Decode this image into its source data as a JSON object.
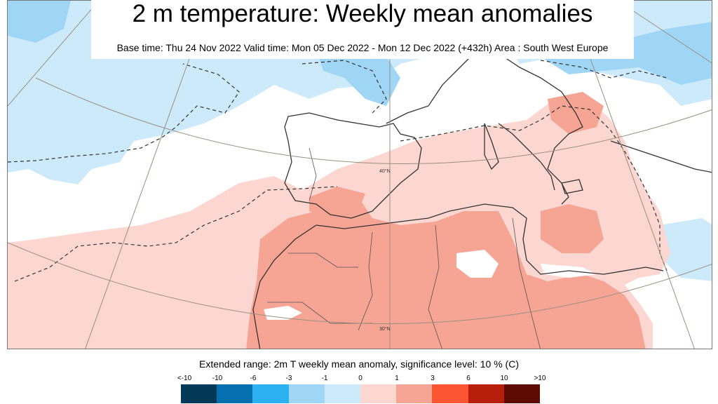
{
  "header": {
    "title": "2 m temperature: Weekly mean anomalies",
    "subtitle": "Base time: Thu 24 Nov 2022 Valid time: Mon 05 Dec 2022 - Mon 12 Dec 2022 (+432h) Area : South West Europe"
  },
  "map": {
    "lat_labels": [
      "40°N",
      "30°N"
    ],
    "colors": {
      "sea_neutral": "#ffffff",
      "cold_light": "#cdeafb",
      "cold_mid": "#9fd5f5",
      "warm_light": "#fcd6d0",
      "warm_mid": "#f6a493",
      "coastline": "#333333",
      "grid": "#999080"
    }
  },
  "legend": {
    "caption": "Extended range: 2m T weekly mean anomaly, significance level: 10 % (C)",
    "ticks": [
      "<-10",
      "-10",
      "-6",
      "-3",
      "-1",
      "0",
      "1",
      "3",
      "6",
      "10",
      ">10"
    ],
    "colors": [
      "#023858",
      "#0570b0",
      "#2cb1f2",
      "#9fd5f5",
      "#cdeafb",
      "#ffffff",
      "#fcd6d0",
      "#f6a493",
      "#fb5533",
      "#b81e0c",
      "#5e0b04"
    ]
  }
}
